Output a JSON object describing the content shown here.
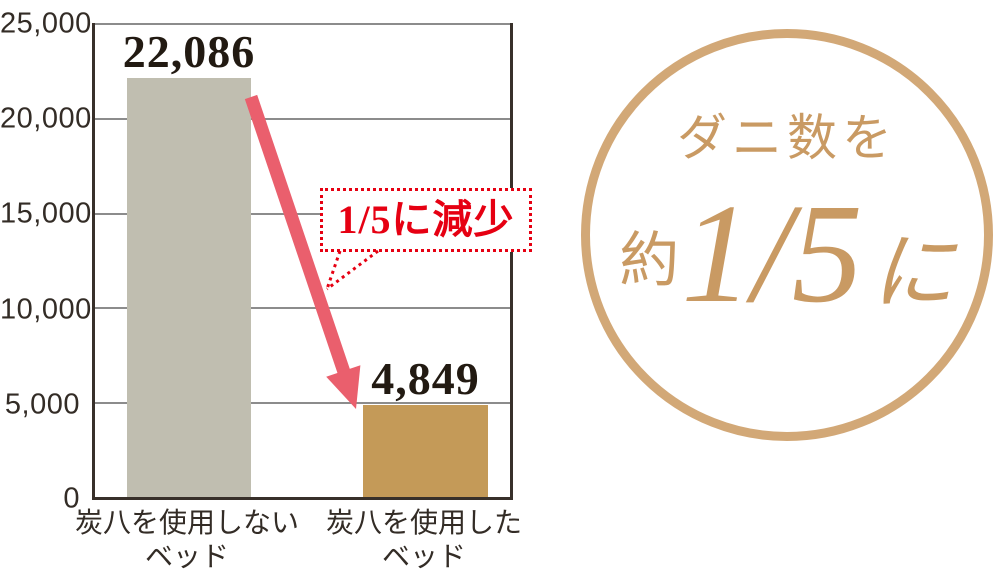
{
  "colors": {
    "gold_text": "#c99a63",
    "gold_ring": "#d2a877",
    "bar_without": "#c0beb0",
    "bar_with": "#c49a58",
    "arrow": "#ea5f6d",
    "red": "#e60012",
    "axis": "#38302a",
    "grid": "#8c8c8c",
    "ink": "#332c26",
    "value_ink": "#221a12"
  },
  "chart": {
    "y_axis": {
      "tick_labels": [
        "25,000",
        "20,000",
        "15,000",
        "10,000",
        "5,000",
        "0"
      ]
    },
    "bars": [
      {
        "value_label": "22,086",
        "label_line1": "炭八を使用しない",
        "label_line2": "ベッド"
      },
      {
        "value_label": "4,849",
        "label_line1": "炭八を使用した",
        "label_line2": "ベッド"
      }
    ],
    "callout_text": "1/5に減少"
  },
  "badge": {
    "title": "ダニ数を",
    "approx": "約",
    "fraction": "1/5",
    "suffix": "に"
  },
  "chart_data": {
    "type": "bar",
    "categories": [
      "炭八を使用しないベッド",
      "炭八を使用したベッド"
    ],
    "values": [
      22086,
      4849
    ],
    "value_labels": [
      "22,086",
      "4,849"
    ],
    "bar_colors": [
      "#c0beb0",
      "#c49a58"
    ],
    "title": "",
    "xlabel": "",
    "ylabel": "",
    "ylim": [
      0,
      25000
    ],
    "yticks": [
      0,
      5000,
      10000,
      15000,
      20000,
      25000
    ],
    "ytick_labels": [
      "0",
      "5,000",
      "10,000",
      "15,000",
      "20,000",
      "25,000"
    ],
    "grid": true,
    "legend": false,
    "annotations": [
      {
        "type": "callout",
        "text": "1/5に減少"
      },
      {
        "type": "badge",
        "text": "ダニ数を約1/5に"
      }
    ]
  }
}
